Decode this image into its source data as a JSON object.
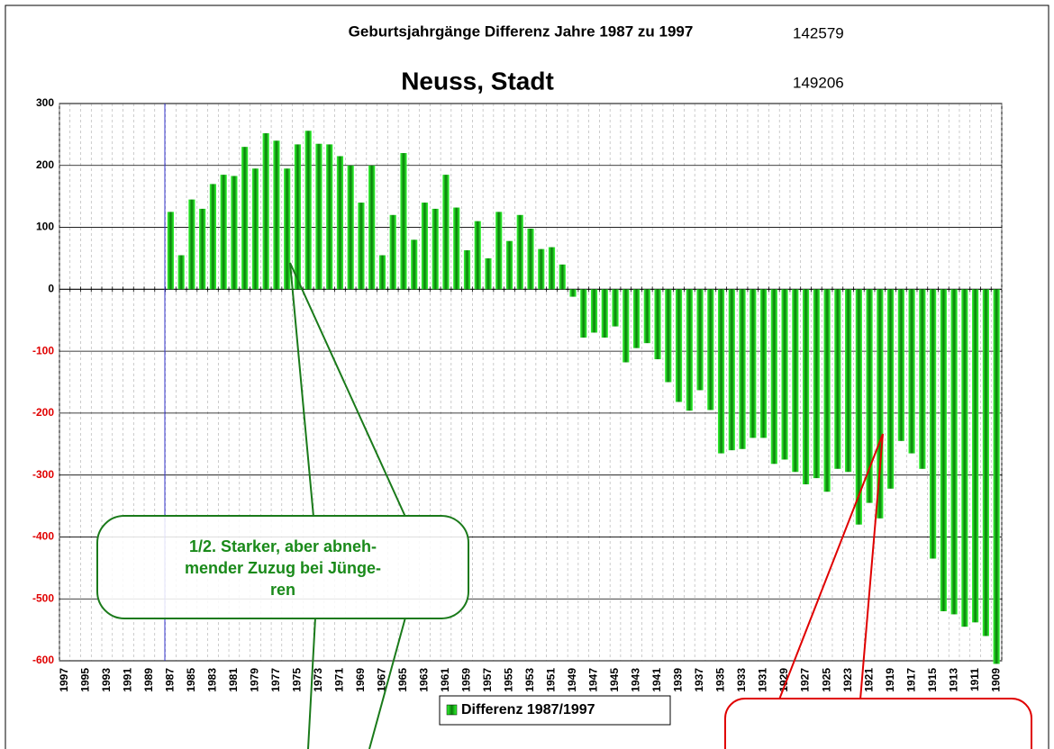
{
  "chart_data": {
    "type": "bar",
    "title": "Geburtsjahrgänge Differenz Jahre 1987 zu 1997",
    "title_number": "142579",
    "subtitle": "Neuss, Stadt",
    "subtitle_number": "149206",
    "annotation": [
      "1/2. Starker, aber abneh-",
      "mender Zuzug bei Jünge-",
      "ren"
    ],
    "legend": "Differenz 1987/1997",
    "categories": [
      "1997",
      null,
      "1995",
      null,
      "1993",
      null,
      "1991",
      null,
      "1989",
      null,
      "1987",
      null,
      "1985",
      null,
      "1983",
      null,
      "1981",
      null,
      "1979",
      null,
      "1977",
      null,
      "1975",
      null,
      "1973",
      null,
      "1971",
      null,
      "1969",
      null,
      "1967",
      null,
      "1965",
      null,
      "1963",
      null,
      "1961",
      null,
      "1959",
      null,
      "1957",
      null,
      "1955",
      null,
      "1953",
      null,
      "1951",
      null,
      "1949",
      null,
      "1947",
      null,
      "1945",
      null,
      "1943",
      null,
      "1941",
      null,
      "1939",
      null,
      "1937",
      null,
      "1935",
      null,
      "1933",
      null,
      "1931",
      null,
      "1929",
      null,
      "1927",
      null,
      "1925",
      null,
      "1923",
      null,
      "1921",
      null,
      "1919",
      null,
      "1917",
      null,
      "1915",
      null,
      "1913",
      null,
      "1911",
      null,
      "1909"
    ],
    "values": [
      null,
      null,
      null,
      null,
      null,
      null,
      null,
      null,
      null,
      null,
      125,
      55,
      145,
      130,
      170,
      185,
      183,
      230,
      195,
      252,
      240,
      195,
      234,
      256,
      235,
      234,
      215,
      200,
      140,
      200,
      55,
      120,
      220,
      80,
      140,
      130,
      185,
      132,
      63,
      110,
      50,
      125,
      78,
      120,
      98,
      65,
      68,
      40,
      -12,
      -78,
      -70,
      -78,
      -60,
      -118,
      -95,
      -87,
      -113,
      -150,
      -182,
      -196,
      -163,
      -195,
      -265,
      -260,
      -258,
      -240,
      -240,
      -282,
      -275,
      -295,
      -315,
      -305,
      -327,
      -290,
      -295,
      -380,
      -345,
      -370,
      -322,
      -245,
      -265,
      -290,
      -435,
      -520,
      -525,
      -545,
      -538,
      -560,
      -605
    ],
    "color": "#1a9a1a",
    "ylim": [
      -600,
      300
    ],
    "yticks": [
      -600,
      -500,
      -400,
      -300,
      -200,
      -100,
      0,
      100,
      200,
      300
    ],
    "grid": true
  }
}
